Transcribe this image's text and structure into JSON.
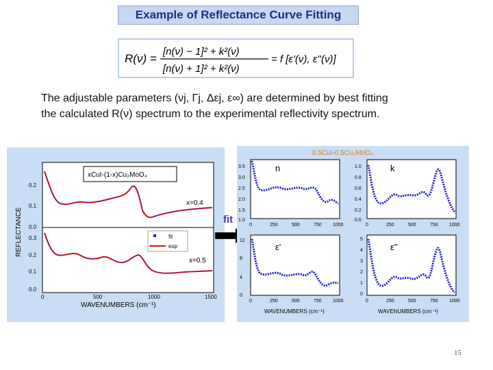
{
  "title": "Example of Reflectance Curve Fitting",
  "formula": {
    "lhs": "R(ν) =",
    "num": "[n(ν) − 1]² + k²(ν)",
    "den": "[n(ν) + 1]² + k²(ν)",
    "rhs": "= f [ε'(ν), ε''(ν)]"
  },
  "paragraph": {
    "line1_a": "The adjustable parameters (",
    "params": "ν",
    "line1_b": "j, Γj, Δεj, ε∞) are determined by best fitting",
    "line2": "the calculated R(ν) spectrum to the experimental reflectivity spectrum."
  },
  "left_plot": {
    "legend_title": "xCuI-(1-x)Cu₂MoO₄",
    "ylabel": "REFLECTANCE",
    "xlabel": "WAVENUMBERS (cm⁻¹)",
    "label_top": "x=0.4",
    "label_bottom": "x=0.5",
    "legend_fit": "fit",
    "legend_exp": "exp",
    "y_ticks_top": [
      "0.2",
      "0.1",
      "0.0"
    ],
    "y_ticks_bottom": [
      "0.3",
      "0.2",
      "0.1",
      "0.0"
    ],
    "x_ticks": [
      "0",
      "500",
      "1000",
      "1500"
    ]
  },
  "right_plot": {
    "title": "0.5CuI-0.5Cu₂MoO₄",
    "label_n": "n",
    "label_k": "k",
    "label_e1": "ε'",
    "label_e2": "ε''",
    "xlabel": "WAVENUMBERS (cm⁻¹)",
    "n_ticks": [
      "3.5",
      "3.0",
      "2.5",
      "2.0",
      "1.5",
      "1.0"
    ],
    "k_ticks": [
      "1.0",
      "0.8",
      "0.6",
      "0.4",
      "0.2",
      "0.0"
    ],
    "e1_ticks": [
      "12",
      "8",
      "4",
      "0"
    ],
    "e2_ticks": [
      "5",
      "4",
      "3",
      "2",
      "1",
      "0"
    ],
    "x_ticks": [
      "0",
      "250",
      "500",
      "750",
      "1000"
    ]
  },
  "fit_label": "fit",
  "page_number": "15",
  "colors": {
    "title_text": "#1b2f8a",
    "panel_bg": "#c9def4",
    "data_blue": "#1a1ad0",
    "fit_red": "#e01010"
  }
}
